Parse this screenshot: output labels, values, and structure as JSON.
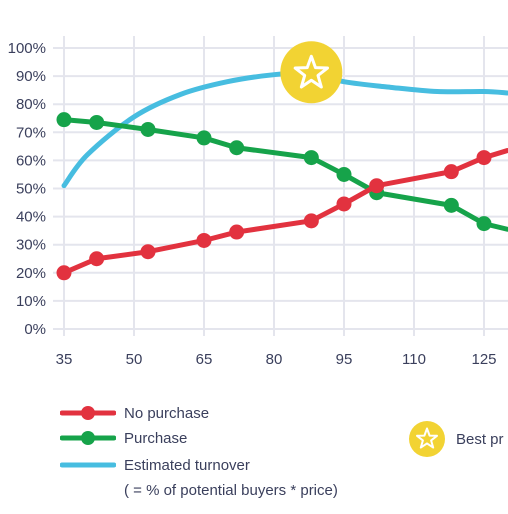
{
  "chart_data": {
    "type": "line",
    "x": [
      35,
      42,
      53,
      65,
      72,
      88,
      95,
      102,
      118,
      125,
      130
    ],
    "series": [
      {
        "name": "No purchase",
        "color": "#e2323f",
        "values": [
          20,
          25,
          27.5,
          31.5,
          34.5,
          38.5,
          44.5,
          51,
          56,
          61,
          63.5
        ],
        "markers": [
          true,
          true,
          true,
          true,
          true,
          true,
          true,
          true,
          true,
          true,
          false
        ]
      },
      {
        "name": "Purchase",
        "color": "#16a34a",
        "values": [
          74.5,
          73.5,
          71,
          68,
          64.5,
          61,
          55,
          48.5,
          44,
          37.5,
          35.5
        ],
        "markers": [
          true,
          true,
          true,
          true,
          true,
          true,
          true,
          true,
          true,
          true,
          false
        ]
      },
      {
        "name": "Estimated turnover",
        "color": "#47bde0",
        "x": [
          35,
          40,
          50,
          60,
          70,
          80,
          88,
          95,
          105,
          115,
          125,
          130
        ],
        "values": [
          51,
          62,
          75.5,
          83.5,
          88,
          90.5,
          91,
          88,
          86,
          84.5,
          84.5,
          84
        ]
      }
    ],
    "x_ticks": [
      "35",
      "50",
      "65",
      "80",
      "95",
      "110",
      "125"
    ],
    "x_tick_values": [
      35,
      50,
      65,
      80,
      95,
      110,
      125
    ],
    "y_ticks": [
      "0%",
      "10%",
      "20%",
      "30%",
      "40%",
      "50%",
      "60%",
      "70%",
      "80%",
      "90%",
      "100%"
    ],
    "y_tick_values": [
      0,
      10,
      20,
      30,
      40,
      50,
      60,
      70,
      80,
      90,
      100
    ],
    "xlim": [
      32,
      130
    ],
    "ylim": [
      0,
      100
    ],
    "grid": true,
    "best_point": {
      "x": 88,
      "y": 91
    }
  },
  "legend": {
    "no_purchase": "No purchase",
    "purchase": "Purchase",
    "turnover": "Estimated turnover",
    "turnover_note": "( = % of potential buyers * price)",
    "best": "Best pr"
  },
  "colors": {
    "no_purchase": "#e2323f",
    "purchase": "#16a34a",
    "turnover": "#47bde0",
    "best": "#f2d333",
    "grid": "#e4e5ed",
    "text": "#3a3f5c"
  },
  "icons": {
    "best": "star-icon"
  }
}
